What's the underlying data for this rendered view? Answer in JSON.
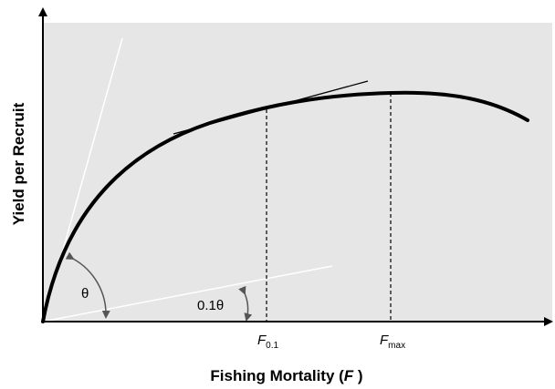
{
  "diagram": {
    "x_axis_label": "Fishing Mortality (",
    "x_axis_symbol": "F",
    "x_axis_close": " )",
    "y_axis_label": "Yield per Recruit",
    "f01_main": "F",
    "f01_sub": "0.1",
    "fmax_main": "F",
    "fmax_sub": "max",
    "theta_label": "θ",
    "tenth_theta_label": "0.1θ",
    "colors": {
      "plot_background": "#e6e6e6",
      "curve": "#000000",
      "tangent_white": "#ffffff",
      "arc": "#555555",
      "axis": "#000000"
    }
  }
}
